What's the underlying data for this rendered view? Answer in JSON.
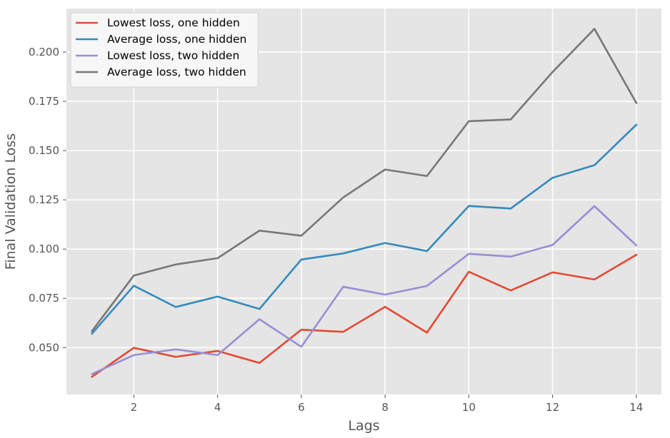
{
  "chart_data": {
    "type": "line",
    "xlabel": "Lags",
    "ylabel": "Final Validation Loss",
    "xlim": [
      0.39,
      14.6
    ],
    "ylim": [
      0.0262,
      0.2221
    ],
    "xticks": [
      2,
      4,
      6,
      8,
      10,
      12,
      14
    ],
    "yticks": [
      0.05,
      0.075,
      0.1,
      0.125,
      0.15,
      0.175,
      0.2
    ],
    "ytick_labels": [
      "0.050",
      "0.075",
      "0.100",
      "0.125",
      "0.150",
      "0.175",
      "0.200"
    ],
    "grid": true,
    "legend_position": "top-left",
    "x": [
      1,
      2,
      3,
      4,
      5,
      6,
      7,
      8,
      9,
      10,
      11,
      12,
      13,
      14
    ],
    "series": [
      {
        "name": "Lowest loss, one hidden",
        "color": "#E24A33",
        "values": [
          0.0352,
          0.0499,
          0.0453,
          0.0483,
          0.0422,
          0.0591,
          0.058,
          0.0707,
          0.0576,
          0.0885,
          0.079,
          0.0882,
          0.0846,
          0.0971
        ]
      },
      {
        "name": "Average loss, one hidden",
        "color": "#348ABD",
        "values": [
          0.0571,
          0.0814,
          0.0706,
          0.0759,
          0.0696,
          0.0947,
          0.0978,
          0.1031,
          0.099,
          0.1219,
          0.1206,
          0.1362,
          0.1426,
          0.1631
        ]
      },
      {
        "name": "Lowest loss, two hidden",
        "color": "#988ED5",
        "values": [
          0.0366,
          0.0462,
          0.0491,
          0.0462,
          0.0644,
          0.0504,
          0.0809,
          0.0769,
          0.0813,
          0.0976,
          0.0962,
          0.1021,
          0.1218,
          0.1019
        ]
      },
      {
        "name": "Average loss, two hidden",
        "color": "#777777",
        "values": [
          0.0584,
          0.0866,
          0.0922,
          0.0954,
          0.1094,
          0.1068,
          0.1262,
          0.1404,
          0.1371,
          0.1649,
          0.1658,
          0.1899,
          0.2118,
          0.1742
        ]
      }
    ]
  }
}
